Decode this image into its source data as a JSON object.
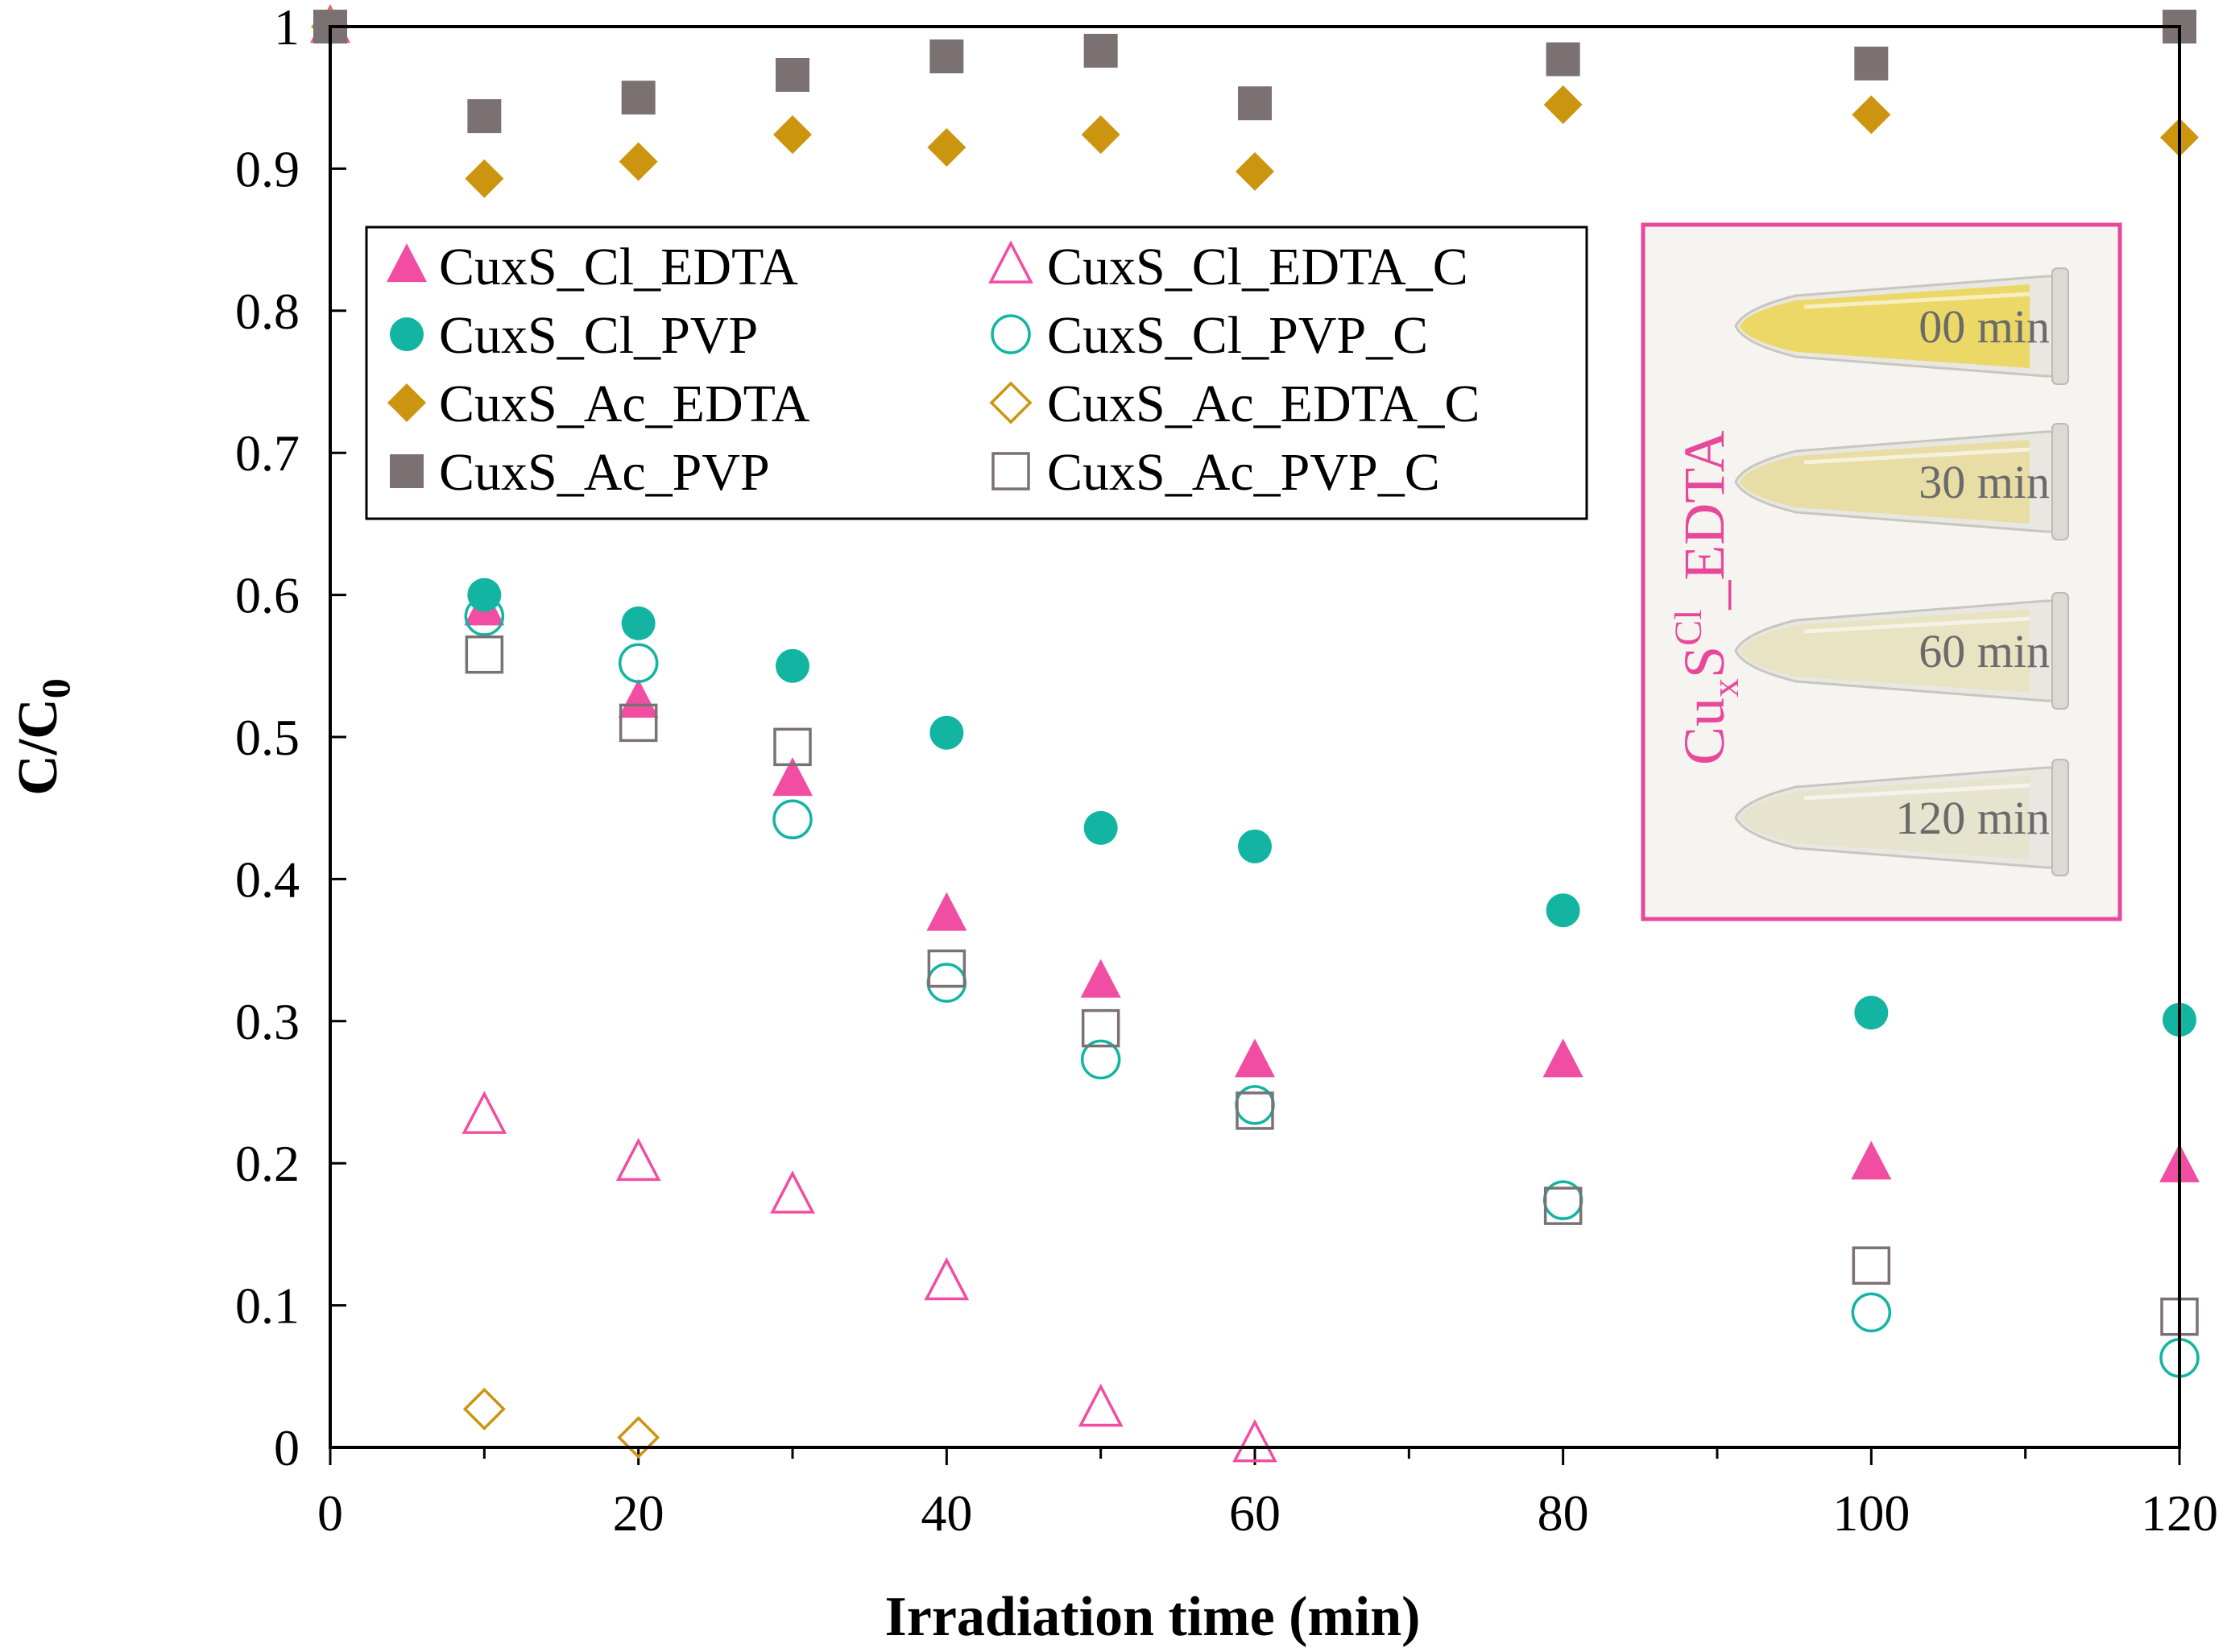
{
  "chart_data": {
    "type": "scatter",
    "title": "",
    "xlabel": "Irradiation time (min)",
    "ylabel_main": "C/C",
    "ylabel_sub": "0",
    "xlim": [
      0,
      120
    ],
    "ylim": [
      0,
      1
    ],
    "x_ticks": [
      "0",
      "20",
      "40",
      "60",
      "80",
      "100",
      "120"
    ],
    "y_ticks": [
      "0",
      "0.1",
      "0.2",
      "0.3",
      "0.4",
      "0.5",
      "0.6",
      "0.7",
      "0.8",
      "0.9",
      "1"
    ],
    "grid": false,
    "legend_position": "upper-left",
    "series": [
      {
        "name": "CuxS_Cl_EDTA",
        "marker": "triangle",
        "filled": true,
        "color": "#f14ea3",
        "x": [
          0,
          10,
          20,
          30,
          40,
          50,
          60,
          80,
          100,
          120
        ],
        "y": [
          1.0,
          0.59,
          0.525,
          0.47,
          0.375,
          0.328,
          0.272,
          0.272,
          0.2,
          0.198
        ]
      },
      {
        "name": "CuxS_Cl_PVP",
        "marker": "circle",
        "filled": true,
        "color": "#13b5a2",
        "x": [
          0,
          10,
          20,
          30,
          40,
          50,
          60,
          80,
          100,
          120
        ],
        "y": [
          1.0,
          0.6,
          0.58,
          0.55,
          0.503,
          0.436,
          0.423,
          0.378,
          0.306,
          0.301
        ]
      },
      {
        "name": "CuxS_Ac_EDTA",
        "marker": "diamond",
        "filled": true,
        "color": "#cc9510",
        "x": [
          0,
          10,
          20,
          30,
          40,
          50,
          60,
          80,
          100,
          120
        ],
        "y": [
          1.0,
          0.893,
          0.905,
          0.924,
          0.915,
          0.924,
          0.898,
          0.945,
          0.938,
          0.922
        ]
      },
      {
        "name": "CuxS_Ac_PVP",
        "marker": "square",
        "filled": true,
        "color": "#7b7173",
        "x": [
          0,
          10,
          20,
          30,
          40,
          50,
          60,
          80,
          100,
          120
        ],
        "y": [
          1.0,
          0.937,
          0.95,
          0.966,
          0.979,
          0.983,
          0.946,
          0.977,
          0.974,
          1.0
        ]
      },
      {
        "name": "CuxS_Cl_EDTA_C",
        "marker": "triangle",
        "filled": false,
        "color": "#f14ea3",
        "x": [
          10,
          20,
          30,
          40,
          50,
          60
        ],
        "y": [
          0.233,
          0.2,
          0.177,
          0.116,
          0.027,
          0.002
        ]
      },
      {
        "name": "CuxS_Cl_PVP_C",
        "marker": "circle",
        "filled": false,
        "color": "#13b5a2",
        "x": [
          10,
          20,
          30,
          40,
          50,
          60,
          80,
          100,
          120
        ],
        "y": [
          0.585,
          0.552,
          0.442,
          0.327,
          0.273,
          0.241,
          0.174,
          0.095,
          0.063
        ]
      },
      {
        "name": "CuxS_Ac_EDTA_C",
        "marker": "diamond",
        "filled": false,
        "color": "#cc9510",
        "x": [
          10,
          20
        ],
        "y": [
          0.027,
          0.007
        ]
      },
      {
        "name": "CuxS_Ac_PVP_C",
        "marker": "square",
        "filled": false,
        "color": "#7b7173",
        "x": [
          10,
          20,
          30,
          40,
          50,
          60,
          80,
          100,
          120
        ],
        "y": [
          0.558,
          0.51,
          0.493,
          0.337,
          0.295,
          0.237,
          0.17,
          0.128,
          0.092
        ]
      }
    ],
    "legend_left": [
      "CuxS_Cl_EDTA",
      "CuxS_Cl_PVP",
      "CuxS_Ac_EDTA",
      "CuxS_Ac_PVP"
    ],
    "legend_right": [
      "CuxS_Cl_EDTA_C",
      "CuxS_Cl_PVP_C",
      "CuxS_Ac_EDTA_C",
      "CuxS_Ac_PVP_C"
    ]
  },
  "inset": {
    "title_main": "Cu",
    "title_sub": "x",
    "title_mid": "S",
    "title_sup": "Cl",
    "title_end": "_EDTA",
    "border_color": "#e8489a",
    "tubes": [
      {
        "label": "00 min",
        "liquid_color": "#ecd65a"
      },
      {
        "label": "30 min",
        "liquid_color": "#e7dc9e"
      },
      {
        "label": "60 min",
        "liquid_color": "#e8e2bf"
      },
      {
        "label": "120 min",
        "liquid_color": "#e6e2cc"
      }
    ]
  }
}
